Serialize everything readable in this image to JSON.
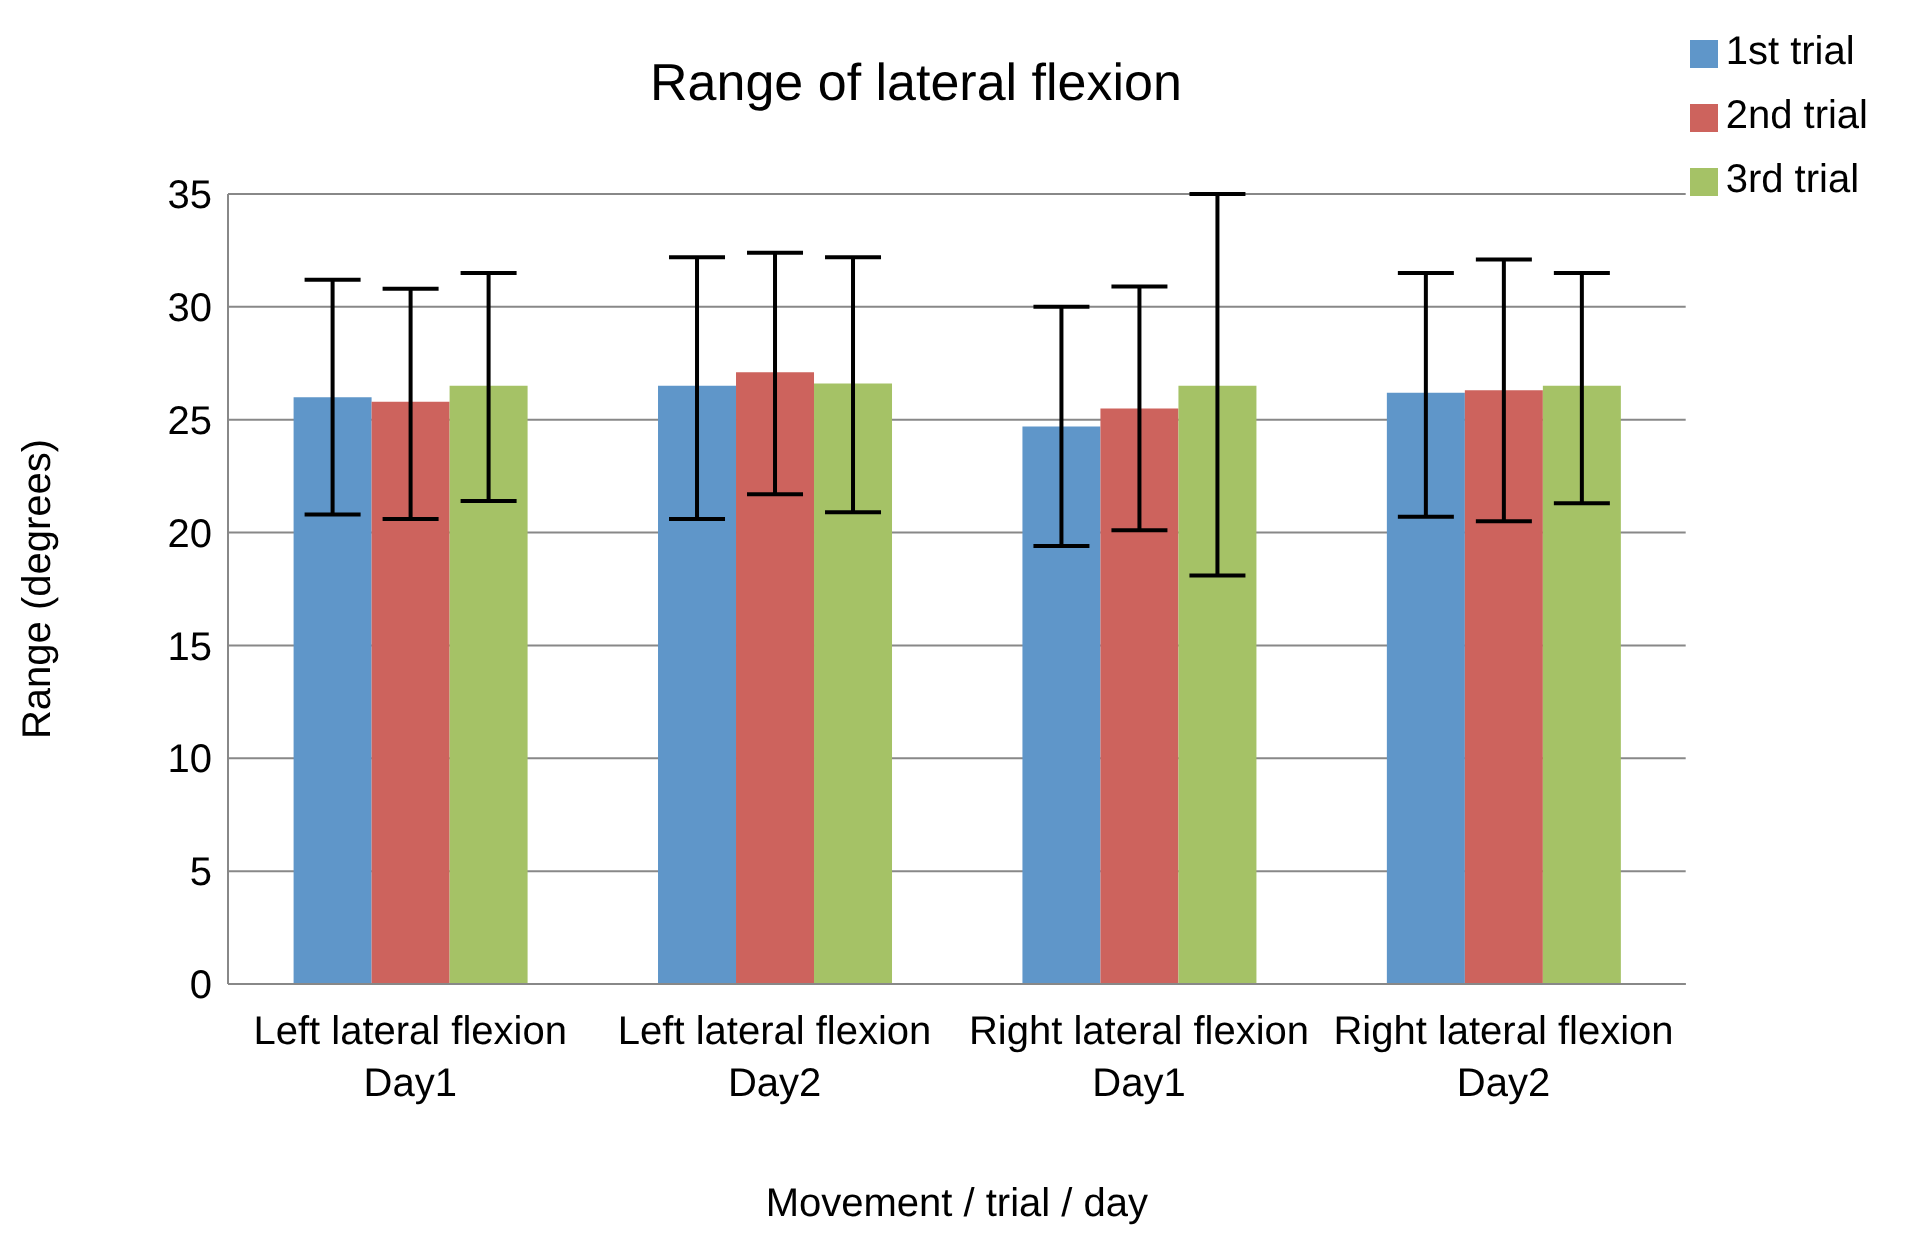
{
  "chart_data": {
    "type": "bar",
    "title": "Range of lateral flexion",
    "xlabel": "Movement / trial / day",
    "ylabel": "Range (degrees)",
    "categories": [
      "Left lateral flexion Day1",
      "Left lateral flexion Day2",
      "Right lateral flexion Day1",
      "Right lateral flexion Day2"
    ],
    "series": [
      {
        "name": "1st trial",
        "color": "#5f96c9",
        "values": [
          26.0,
          26.5,
          24.7,
          26.2
        ],
        "errors": [
          [
            20.8,
            31.2
          ],
          [
            20.6,
            32.2
          ],
          [
            19.4,
            30.0
          ],
          [
            20.7,
            31.5
          ]
        ]
      },
      {
        "name": "2nd trial",
        "color": "#cd635d",
        "values": [
          25.8,
          27.1,
          25.5,
          26.3
        ],
        "errors": [
          [
            20.6,
            30.8
          ],
          [
            21.7,
            32.4
          ],
          [
            20.1,
            30.9
          ],
          [
            20.5,
            32.1
          ]
        ]
      },
      {
        "name": "3rd trial",
        "color": "#a5c266",
        "values": [
          26.5,
          26.6,
          26.5,
          26.5
        ],
        "errors": [
          [
            21.4,
            31.5
          ],
          [
            20.9,
            32.2
          ],
          [
            18.1,
            35.0
          ],
          [
            21.3,
            31.5
          ]
        ]
      }
    ],
    "ylim": [
      0,
      35
    ],
    "yticks": [
      0,
      5,
      10,
      15,
      20,
      25,
      30,
      35
    ],
    "grid": "y",
    "legend": "top right"
  }
}
